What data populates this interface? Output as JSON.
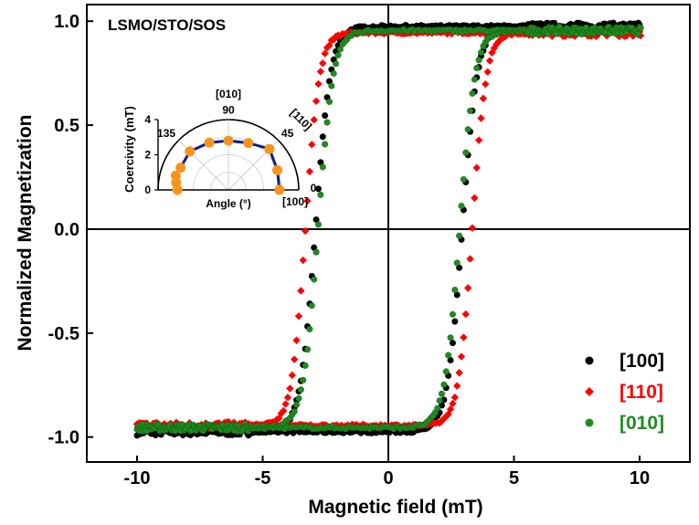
{
  "chart_data": {
    "type": "scatter",
    "sample_label": "LSMO/STO/SOS",
    "xlabel": "Magnetic field (mT)",
    "ylabel": "Normalized Magnetization",
    "xlim": [
      -12,
      12
    ],
    "ylim": [
      -1.12,
      1.08
    ],
    "x_ticks": [
      -10,
      -5,
      0,
      5,
      10
    ],
    "x_tick_labels": [
      "-10",
      "-5",
      "0",
      "5",
      "10"
    ],
    "y_ticks": [
      -1.0,
      -0.5,
      0.0,
      0.5,
      1.0
    ],
    "y_tick_labels": [
      "-1.0",
      "-0.5",
      "0.0",
      "0.5",
      "1.0"
    ],
    "zero_lines": true,
    "legend_position": "bottom-right",
    "series": [
      {
        "name": "[100]",
        "color": "#000000",
        "marker": "circle",
        "coercivity": 2.9,
        "saturation": 0.975,
        "width": 0.6
      },
      {
        "name": "[110]",
        "color": "#ff0000",
        "marker": "diamond",
        "coercivity": 3.3,
        "saturation": 0.945,
        "width": 0.55
      },
      {
        "name": "[010]",
        "color": "#1e8c1e",
        "marker": "circle",
        "coercivity": 2.8,
        "saturation": 0.955,
        "width": 0.6
      }
    ],
    "inset": {
      "type": "polar",
      "ylabel": "Coercivity (mT)",
      "xlabel": "Angle (°)",
      "r_ticks": [
        0,
        2,
        4
      ],
      "r_max": 4,
      "angle_ticks": [
        {
          "angle": 0,
          "label": "0"
        },
        {
          "angle": 45,
          "label": "45"
        },
        {
          "angle": 90,
          "label": "90"
        },
        {
          "angle": 135,
          "label": "135"
        }
      ],
      "direction_labels": [
        {
          "angle": 0,
          "label": "[100]"
        },
        {
          "angle": 45,
          "label": "[110]"
        },
        {
          "angle": 90,
          "label": "[010]"
        }
      ],
      "points": [
        {
          "angle": 0,
          "value": 2.9
        },
        {
          "angle": 22,
          "value": 3.0
        },
        {
          "angle": 45,
          "value": 3.3
        },
        {
          "angle": 67,
          "value": 2.9
        },
        {
          "angle": 90,
          "value": 2.8
        },
        {
          "angle": 112,
          "value": 2.9
        },
        {
          "angle": 135,
          "value": 3.1
        },
        {
          "angle": 155,
          "value": 3.0
        },
        {
          "angle": 165,
          "value": 3.1
        },
        {
          "angle": 172,
          "value": 3.0
        },
        {
          "angle": 180,
          "value": 2.9
        }
      ],
      "point_color": "#f7941d",
      "line_color": "#0b1f8a"
    }
  }
}
